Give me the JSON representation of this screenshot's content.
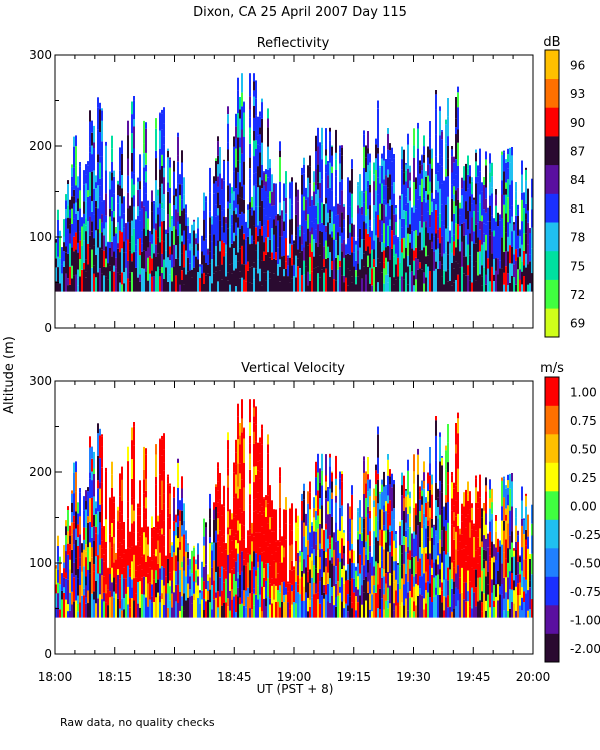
{
  "title": "Dixon, CA 25 April 2007  Day 115",
  "ylabel": "Altitude (m)",
  "xlabel": "UT  (PST + 8)",
  "footnote": "Raw data, no quality checks",
  "x_ticks": [
    "18:00",
    "18:15",
    "18:30",
    "18:45",
    "19:00",
    "19:15",
    "19:30",
    "19:45",
    "20:00"
  ],
  "x_range_minutes": [
    0,
    120
  ],
  "chart_data": [
    {
      "type": "heatmap",
      "title": "Reflectivity",
      "xlabel": "UT  (PST + 8)",
      "ylabel": "Altitude (m)",
      "ylim": [
        0,
        300
      ],
      "y_ticks": [
        0,
        100,
        200,
        300
      ],
      "data_floor_m": 40,
      "colorbar": {
        "unit": "dB",
        "levels": [
          "69",
          "72",
          "75",
          "78",
          "81",
          "84",
          "87",
          "90",
          "93",
          "96"
        ],
        "colors": [
          "#d0ff1a",
          "#40ff40",
          "#00e0a0",
          "#20c0f0",
          "#1a30ff",
          "#5a10a0",
          "#2a0a30",
          "#ff0000",
          "#ff7000",
          "#ffc000"
        ]
      },
      "echo_top_profile_m": [
        {
          "t": 0,
          "top": 120
        },
        {
          "t": 5,
          "top": 220
        },
        {
          "t": 10,
          "top": 260
        },
        {
          "t": 15,
          "top": 200
        },
        {
          "t": 20,
          "top": 260
        },
        {
          "t": 25,
          "top": 230
        },
        {
          "t": 30,
          "top": 260
        },
        {
          "t": 35,
          "top": 110
        },
        {
          "t": 40,
          "top": 200
        },
        {
          "t": 45,
          "top": 280
        },
        {
          "t": 50,
          "top": 280
        },
        {
          "t": 55,
          "top": 220
        },
        {
          "t": 60,
          "top": 160
        },
        {
          "t": 65,
          "top": 220
        },
        {
          "t": 70,
          "top": 220
        },
        {
          "t": 75,
          "top": 180
        },
        {
          "t": 80,
          "top": 260
        },
        {
          "t": 85,
          "top": 200
        },
        {
          "t": 90,
          "top": 220
        },
        {
          "t": 95,
          "top": 260
        },
        {
          "t": 100,
          "top": 280
        },
        {
          "t": 105,
          "top": 200
        },
        {
          "t": 110,
          "top": 190
        },
        {
          "t": 115,
          "top": 200
        },
        {
          "t": 120,
          "top": 160
        }
      ]
    },
    {
      "type": "heatmap",
      "title": "Vertical Velocity",
      "xlabel": "UT  (PST + 8)",
      "ylabel": "Altitude (m)",
      "ylim": [
        0,
        300
      ],
      "y_ticks": [
        0,
        100,
        200,
        300
      ],
      "data_floor_m": 40,
      "colorbar": {
        "unit": "m/s",
        "levels": [
          "-2.00",
          "-1.00",
          "-0.75",
          "-0.50",
          "-0.25",
          "0.00",
          "0.25",
          "0.50",
          "0.75",
          "1.00"
        ],
        "colors": [
          "#2a0a30",
          "#5a10a0",
          "#1a30ff",
          "#2080ff",
          "#20c0f0",
          "#40ff40",
          "#ffff00",
          "#ffc000",
          "#ff7000",
          "#ff0000"
        ]
      },
      "echo_top_profile_m": [
        {
          "t": 0,
          "top": 120
        },
        {
          "t": 5,
          "top": 220
        },
        {
          "t": 10,
          "top": 260
        },
        {
          "t": 15,
          "top": 200
        },
        {
          "t": 20,
          "top": 260
        },
        {
          "t": 25,
          "top": 230
        },
        {
          "t": 30,
          "top": 260
        },
        {
          "t": 35,
          "top": 110
        },
        {
          "t": 40,
          "top": 200
        },
        {
          "t": 45,
          "top": 280
        },
        {
          "t": 50,
          "top": 280
        },
        {
          "t": 55,
          "top": 220
        },
        {
          "t": 60,
          "top": 160
        },
        {
          "t": 65,
          "top": 220
        },
        {
          "t": 70,
          "top": 220
        },
        {
          "t": 75,
          "top": 180
        },
        {
          "t": 80,
          "top": 260
        },
        {
          "t": 85,
          "top": 200
        },
        {
          "t": 90,
          "top": 220
        },
        {
          "t": 95,
          "top": 260
        },
        {
          "t": 100,
          "top": 280
        },
        {
          "t": 105,
          "top": 200
        },
        {
          "t": 110,
          "top": 190
        },
        {
          "t": 115,
          "top": 200
        },
        {
          "t": 120,
          "top": 160
        }
      ]
    }
  ]
}
